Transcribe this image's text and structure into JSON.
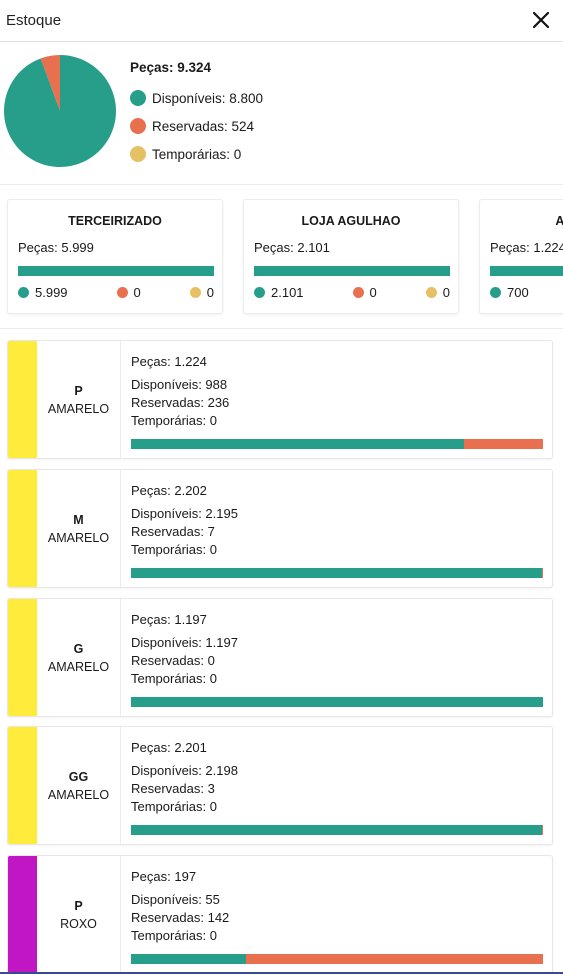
{
  "window": {
    "title": "Estoque",
    "close_icon": "close-icon"
  },
  "colors": {
    "available": "#279e8a",
    "reserved": "#e8704f",
    "temporary": "#e6c064"
  },
  "summary": {
    "total_label": "Peças: 9.324",
    "available": 8800,
    "reserved": 524,
    "temporary": 0,
    "legend": [
      {
        "label": "Disponíveis: 8.800"
      },
      {
        "label": "Reservadas: 524"
      },
      {
        "label": "Temporárias: 0"
      }
    ]
  },
  "stores": [
    {
      "name": "TERCEIRIZADO",
      "pieces": "Peças: 5.999",
      "available_label": "5.999",
      "reserved_label": "0",
      "temporary_label": "0",
      "available_fraction": 1.0
    },
    {
      "name": "LOJA AGULHAO",
      "pieces": "Peças: 2.101",
      "available_label": "2.101",
      "reserved_label": "0",
      "temporary_label": "0",
      "available_fraction": 1.0
    },
    {
      "name": "AGULHÃO",
      "pieces": "Peças: 1.224",
      "available_label": "700",
      "reserved_label": "",
      "temporary_label": "",
      "available_fraction": 1.0
    }
  ],
  "variants": [
    {
      "size": "P",
      "color_name": "AMARELO",
      "swatch": "#ffeb3b",
      "pieces": "Peças: 1.224",
      "available": "Disponíveis: 988",
      "reserved": "Reservadas: 236",
      "temporary": "Temporárias: 0",
      "available_n": 988,
      "reserved_n": 236,
      "temporary_n": 0
    },
    {
      "size": "M",
      "color_name": "AMARELO",
      "swatch": "#ffeb3b",
      "pieces": "Peças: 2.202",
      "available": "Disponíveis: 2.195",
      "reserved": "Reservadas: 7",
      "temporary": "Temporárias: 0",
      "available_n": 2195,
      "reserved_n": 7,
      "temporary_n": 0
    },
    {
      "size": "G",
      "color_name": "AMARELO",
      "swatch": "#ffeb3b",
      "pieces": "Peças: 1.197",
      "available": "Disponíveis: 1.197",
      "reserved": "Reservadas: 0",
      "temporary": "Temporárias: 0",
      "available_n": 1197,
      "reserved_n": 0,
      "temporary_n": 0
    },
    {
      "size": "GG",
      "color_name": "AMARELO",
      "swatch": "#ffeb3b",
      "pieces": "Peças: 2.201",
      "available": "Disponíveis: 2.198",
      "reserved": "Reservadas: 3",
      "temporary": "Temporárias: 0",
      "available_n": 2198,
      "reserved_n": 3,
      "temporary_n": 0
    },
    {
      "size": "P",
      "color_name": "ROXO",
      "swatch": "#c016c4",
      "pieces": "Peças: 197",
      "available": "Disponíveis: 55",
      "reserved": "Reservadas: 142",
      "temporary": "Temporárias: 0",
      "available_n": 55,
      "reserved_n": 142,
      "temporary_n": 0
    }
  ]
}
